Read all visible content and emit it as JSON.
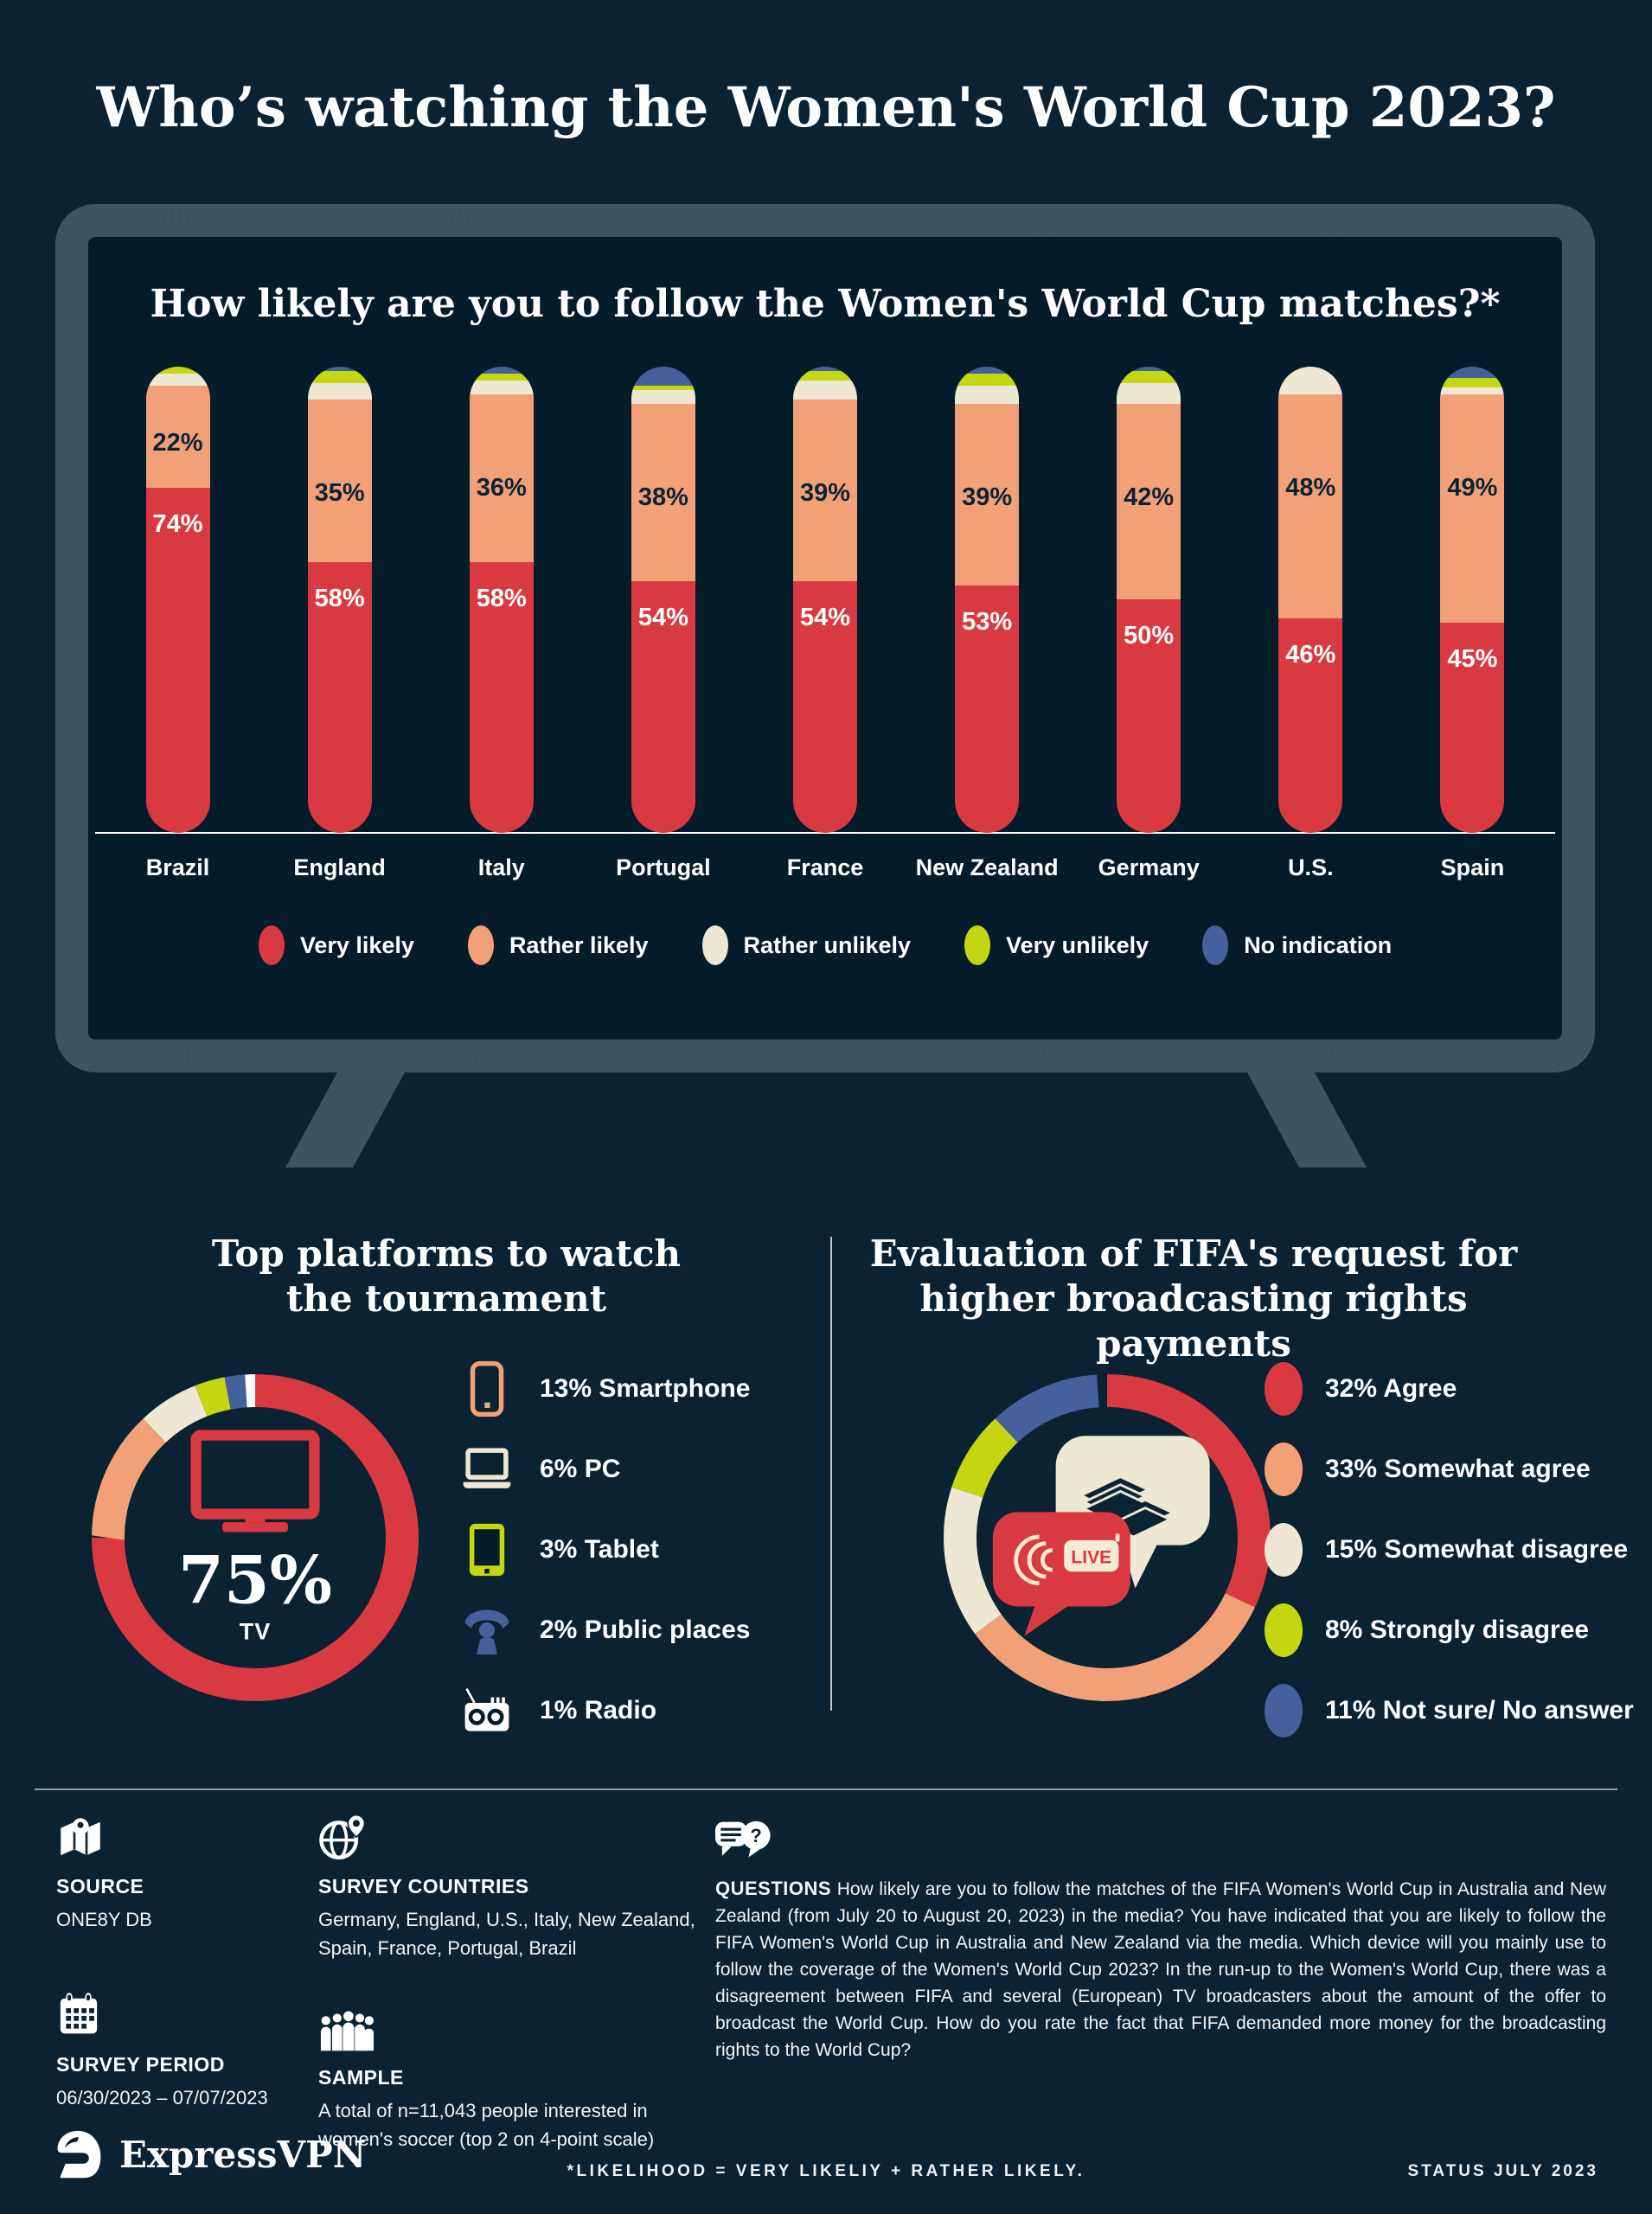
{
  "palette": {
    "red": "#d93a41",
    "salmon": "#f2a077",
    "cream": "#eee7d3",
    "green": "#c5d712",
    "blue": "#44619c",
    "white": "#ffffff",
    "navy_text": "#0b2433",
    "frame": "#3c5361",
    "screen_bg": "#041c2a",
    "page_bg": "#0a2231"
  },
  "header": {
    "title": "Who’s watching the Women's World Cup 2023?"
  },
  "likelihood_chart": {
    "title": "How likely are you to follow the Women's World Cup matches?*",
    "legend": [
      {
        "label": "Very likely",
        "color_key": "red"
      },
      {
        "label": "Rather likely",
        "color_key": "salmon"
      },
      {
        "label": "Rather unlikely",
        "color_key": "cream"
      },
      {
        "label": "Very unlikely",
        "color_key": "green"
      },
      {
        "label": "No indication",
        "color_key": "blue"
      }
    ],
    "countries": [
      {
        "name": "Brazil",
        "very_likely": 74,
        "rather_likely": 22,
        "rather_unlikely": 2.5,
        "very_unlikely": 1.5,
        "no_indication": 0
      },
      {
        "name": "England",
        "very_likely": 58,
        "rather_likely": 35,
        "rather_unlikely": 3.5,
        "very_unlikely": 2.5,
        "no_indication": 1
      },
      {
        "name": "Italy",
        "very_likely": 58,
        "rather_likely": 36,
        "rather_unlikely": 3,
        "very_unlikely": 1.5,
        "no_indication": 1.5
      },
      {
        "name": "Portugal",
        "very_likely": 54,
        "rather_likely": 38,
        "rather_unlikely": 3,
        "very_unlikely": 1,
        "no_indication": 4
      },
      {
        "name": "France",
        "very_likely": 54,
        "rather_likely": 39,
        "rather_unlikely": 4,
        "very_unlikely": 2,
        "no_indication": 1
      },
      {
        "name": "New Zealand",
        "very_likely": 53,
        "rather_likely": 39,
        "rather_unlikely": 4,
        "very_unlikely": 2.5,
        "no_indication": 1.5
      },
      {
        "name": "Germany",
        "very_likely": 50,
        "rather_likely": 42,
        "rather_unlikely": 4.5,
        "very_unlikely": 2.5,
        "no_indication": 1
      },
      {
        "name": "U.S.",
        "very_likely": 46,
        "rather_likely": 48,
        "rather_unlikely": 6,
        "very_unlikely": 0,
        "no_indication": 0
      },
      {
        "name": "Spain",
        "very_likely": 45,
        "rather_likely": 49,
        "rather_unlikely": 1.5,
        "very_unlikely": 2,
        "no_indication": 2.5
      }
    ]
  },
  "platforms": {
    "title": "Top platforms to watch the tournament",
    "center_value": "75%",
    "center_label": "TV",
    "segments": [
      {
        "label": "TV",
        "value": 75,
        "color_key": "red"
      },
      {
        "label": "Smartphone",
        "value": 13,
        "color_key": "salmon"
      },
      {
        "label": "PC",
        "value": 6,
        "color_key": "cream"
      },
      {
        "label": "Tablet",
        "value": 3,
        "color_key": "green"
      },
      {
        "label": "Public places",
        "value": 2,
        "color_key": "blue"
      },
      {
        "label": "Radio",
        "value": 1,
        "color_key": "white"
      }
    ],
    "items": [
      {
        "label": "13% Smartphone",
        "icon": "smartphone"
      },
      {
        "label": "6% PC",
        "icon": "pc"
      },
      {
        "label": "3% Tablet",
        "icon": "tablet"
      },
      {
        "label": "2% Public places",
        "icon": "public-places"
      },
      {
        "label": "1% Radio",
        "icon": "radio"
      }
    ]
  },
  "fifa": {
    "title": "Evaluation of FIFA's request for higher broadcasting rights payments",
    "live_badge": "LIVE",
    "segments": [
      {
        "label": "Agree",
        "value": 32,
        "color_key": "red"
      },
      {
        "label": "Somewhat agree",
        "value": 33,
        "color_key": "salmon"
      },
      {
        "label": "Somewhat disagree",
        "value": 15,
        "color_key": "cream"
      },
      {
        "label": "Strongly disagree",
        "value": 8,
        "color_key": "green"
      },
      {
        "label": "Not sure/ No answer",
        "value": 11,
        "color_key": "blue"
      }
    ],
    "items": [
      {
        "label": "32% Agree",
        "color_key": "red"
      },
      {
        "label": "33% Somewhat agree",
        "color_key": "salmon"
      },
      {
        "label": "15% Somewhat disagree",
        "color_key": "cream"
      },
      {
        "label": "8% Strongly disagree",
        "color_key": "green"
      },
      {
        "label": "11% Not sure/ No answer",
        "color_key": "blue"
      }
    ]
  },
  "footer": {
    "source": {
      "heading": "SOURCE",
      "value": "ONE8Y DB"
    },
    "countries": {
      "heading": "SURVEY COUNTRIES",
      "value": "Germany, England, U.S., Italy, New Zealand, Spain, France, Portugal, Brazil"
    },
    "period": {
      "heading": "SURVEY PERIOD",
      "value": "06/30/2023 – 07/07/2023"
    },
    "sample": {
      "heading": "SAMPLE",
      "value": "A total of n=11,043 people interested in women's soccer (top 2 on 4-point scale)"
    },
    "questions": {
      "heading": "QUESTIONS",
      "body": "How likely are you to follow the matches of the FIFA Women's World Cup in Australia and New Zealand (from July 20 to August 20, 2023) in the media? You have indicated that you are likely to follow the FIFA Women's World Cup in Australia and New Zealand via the media. Which device will you mainly use to follow the coverage of the Women's World Cup 2023? In the run-up to the Women's World Cup, there was a disagreement between FIFA and several (European) TV broadcasters about the amount of the offer to broadcast the World Cup. How do you rate the fact that FIFA demanded more money for the broadcasting rights to the World Cup?"
    }
  },
  "bottom": {
    "brand": "ExpressVPN",
    "note": "*LIKELIHOOD = VERY LIKELIY + RATHER LIKELY.",
    "status": "STATUS JULY 2023"
  },
  "chart_data": [
    {
      "type": "bar",
      "stacked": true,
      "title": "How likely are you to follow the Women's World Cup matches?*",
      "categories": [
        "Brazil",
        "England",
        "Italy",
        "Portugal",
        "France",
        "New Zealand",
        "Germany",
        "U.S.",
        "Spain"
      ],
      "series": [
        {
          "name": "Very likely",
          "values": [
            74,
            58,
            58,
            54,
            54,
            53,
            50,
            46,
            45
          ]
        },
        {
          "name": "Rather likely",
          "values": [
            22,
            35,
            36,
            38,
            39,
            39,
            42,
            48,
            49
          ]
        },
        {
          "name": "Rather unlikely",
          "values": [
            2.5,
            3.5,
            3,
            3,
            4,
            4,
            4.5,
            6,
            1.5
          ]
        },
        {
          "name": "Very unlikely",
          "values": [
            1.5,
            2.5,
            1.5,
            1,
            2,
            2.5,
            2.5,
            0,
            2
          ]
        },
        {
          "name": "No indication",
          "values": [
            0,
            1,
            1.5,
            4,
            1,
            1.5,
            1,
            0,
            2.5
          ]
        }
      ],
      "xlabel": "",
      "ylabel": "",
      "ylim": [
        0,
        100
      ],
      "grid": false,
      "legend_position": "bottom"
    },
    {
      "type": "pie",
      "title": "Top platforms to watch the tournament",
      "labels": [
        "TV",
        "Smartphone",
        "PC",
        "Tablet",
        "Public places",
        "Radio"
      ],
      "values": [
        75,
        13,
        6,
        3,
        2,
        1
      ]
    },
    {
      "type": "pie",
      "title": "Evaluation of FIFA's request for higher broadcasting rights payments",
      "labels": [
        "Agree",
        "Somewhat agree",
        "Somewhat disagree",
        "Strongly disagree",
        "Not sure/ No answer"
      ],
      "values": [
        32,
        33,
        15,
        8,
        11
      ]
    }
  ]
}
